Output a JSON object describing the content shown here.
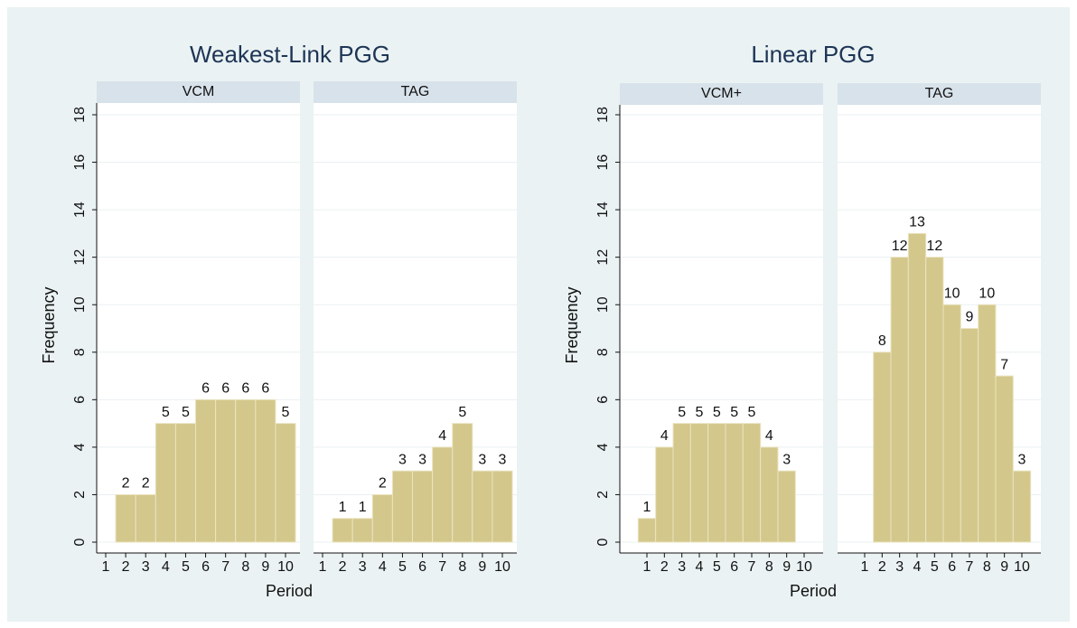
{
  "chart_data": [
    {
      "type": "bar",
      "title": "Weakest-Link PGG",
      "ylabel": "Frequency",
      "xlabel": "Period",
      "ylim": [
        0,
        18
      ],
      "yticks": [
        0,
        2,
        4,
        6,
        8,
        10,
        12,
        14,
        16,
        18
      ],
      "grid": true,
      "color": "#d3c78b",
      "panels": [
        {
          "name": "VCM",
          "categories": [
            1,
            2,
            3,
            4,
            5,
            6,
            7,
            8,
            9,
            10
          ],
          "values": [
            null,
            2,
            2,
            5,
            5,
            6,
            6,
            6,
            6,
            5
          ]
        },
        {
          "name": "TAG",
          "categories": [
            1,
            2,
            3,
            4,
            5,
            6,
            7,
            8,
            9,
            10
          ],
          "values": [
            null,
            1,
            1,
            2,
            3,
            3,
            4,
            5,
            3,
            3
          ]
        }
      ]
    },
    {
      "type": "bar",
      "title": "Linear PGG",
      "ylabel": "Frequency",
      "xlabel": "Period",
      "ylim": [
        0,
        18
      ],
      "yticks": [
        0,
        2,
        4,
        6,
        8,
        10,
        12,
        14,
        16,
        18
      ],
      "grid": true,
      "color": "#d3c78b",
      "panels": [
        {
          "name": "VCM+",
          "categories": [
            1,
            2,
            3,
            4,
            5,
            6,
            7,
            8,
            9,
            10
          ],
          "values": [
            1,
            4,
            5,
            5,
            5,
            5,
            5,
            4,
            3,
            null
          ]
        },
        {
          "name": "TAG",
          "categories": [
            1,
            2,
            3,
            4,
            5,
            6,
            7,
            8,
            9,
            10
          ],
          "values": [
            null,
            8,
            12,
            13,
            12,
            10,
            9,
            10,
            7,
            3
          ]
        }
      ]
    }
  ]
}
